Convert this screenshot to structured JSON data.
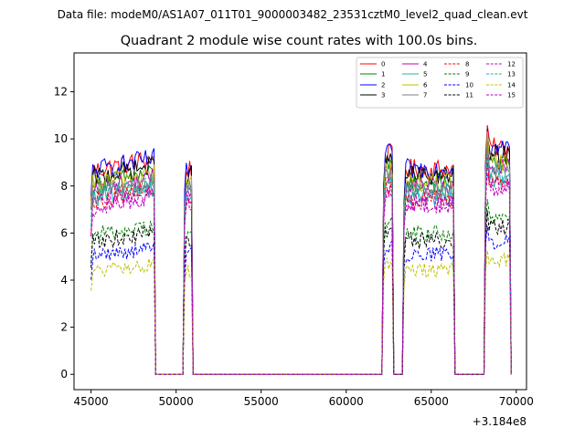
{
  "figure": {
    "suptitle": "Data file: modeM0/AS1A07_011T01_9000003482_23531cztM0_level2_quad_clean.evt",
    "offset_label": "+3.184e8"
  },
  "chart_data": {
    "type": "line",
    "title": "Quadrant 2 module wise count rates with 100.0s bins.",
    "xlabel": "",
    "ylabel": "",
    "xlim": [
      44000,
      70600
    ],
    "ylim": [
      -0.65,
      13.65
    ],
    "x_offset": 318400000,
    "x_ticks": [
      45000,
      50000,
      55000,
      60000,
      65000,
      70000
    ],
    "x_tick_labels": [
      "45000",
      "50000",
      "55000",
      "60000",
      "65000",
      "70000"
    ],
    "y_ticks": [
      0,
      2,
      4,
      6,
      8,
      10,
      12
    ],
    "y_tick_labels": [
      "0",
      "2",
      "4",
      "6",
      "8",
      "10",
      "12"
    ],
    "grid": false,
    "legend_placement": "top-right",
    "bin_size": 100,
    "segments": [
      {
        "start": 45000,
        "end": 48700
      },
      {
        "start": 50500,
        "end": 50900
      },
      {
        "start": 62200,
        "end": 62700
      },
      {
        "start": 63400,
        "end": 66300
      },
      {
        "start": 68200,
        "end": 69600
      }
    ],
    "series": [
      {
        "name": "0",
        "color": "#ff0000",
        "dash": "solid",
        "level": 8.9
      },
      {
        "name": "1",
        "color": "#008000",
        "dash": "solid",
        "level": 8.3
      },
      {
        "name": "2",
        "color": "#0000ff",
        "dash": "solid",
        "level": 8.9
      },
      {
        "name": "3",
        "color": "#000000",
        "dash": "solid",
        "level": 8.6
      },
      {
        "name": "4",
        "color": "#bf00bf",
        "dash": "solid",
        "level": 8.1
      },
      {
        "name": "5",
        "color": "#20b2aa",
        "dash": "solid",
        "level": 7.7
      },
      {
        "name": "6",
        "color": "#bfbf00",
        "dash": "solid",
        "level": 8.3
      },
      {
        "name": "7",
        "color": "#7f7f7f",
        "dash": "solid",
        "level": 8.0
      },
      {
        "name": "8",
        "color": "#ff0000",
        "dash": "dashed",
        "level": 7.6
      },
      {
        "name": "9",
        "color": "#008000",
        "dash": "dashed",
        "level": 6.1
      },
      {
        "name": "10",
        "color": "#0000ff",
        "dash": "dashed",
        "level": 5.2
      },
      {
        "name": "11",
        "color": "#000000",
        "dash": "dashed",
        "level": 5.8
      },
      {
        "name": "12",
        "color": "#bf00bf",
        "dash": "dashed",
        "level": 7.5
      },
      {
        "name": "13",
        "color": "#20b2aa",
        "dash": "dashed",
        "level": 7.9
      },
      {
        "name": "14",
        "color": "#bfbf00",
        "dash": "dashed",
        "level": 4.5
      },
      {
        "name": "15",
        "color": "#bf00bf",
        "dash": "dashed",
        "level": 7.3
      }
    ]
  }
}
